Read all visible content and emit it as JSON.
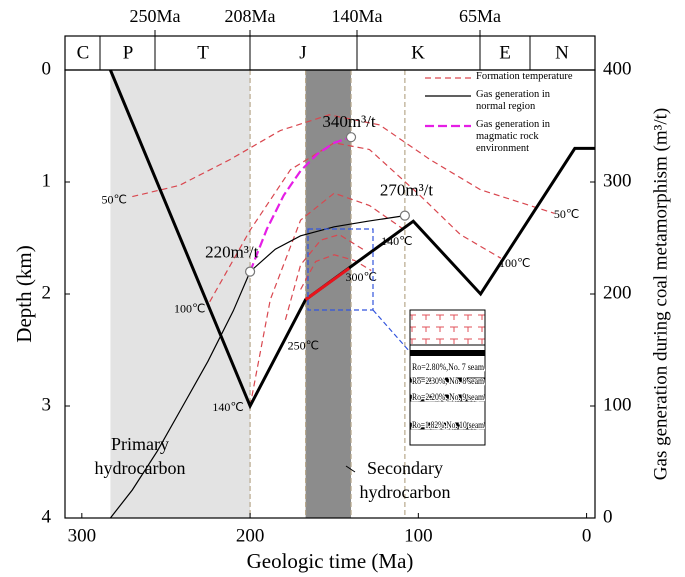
{
  "chart_data": {
    "type": "burial-history",
    "xlabel": "Geologic time (Ma)",
    "ylabel": "Depth (km)",
    "y2label": "Gas generation during coal metamorphism (m³/t)",
    "xlim": [
      310,
      -5
    ],
    "xticks": [
      300,
      200,
      100,
      0
    ],
    "ylim": [
      4,
      0
    ],
    "yticks": [
      0,
      1,
      2,
      3,
      4
    ],
    "y2lim": [
      0,
      400
    ],
    "y2ticks": [
      0,
      100,
      200,
      300,
      400
    ],
    "periods": [
      "C",
      "P",
      "T",
      "J",
      "K",
      "E",
      "N"
    ],
    "period_ages": [
      "250Ma",
      "208Ma",
      "140Ma",
      "65Ma"
    ],
    "shaded": [
      {
        "range": [
          283,
          200
        ],
        "color": "#e3e3e3"
      },
      {
        "range": [
          167,
          140
        ],
        "color": "#8c8c8c"
      }
    ],
    "vlines": [
      200,
      167,
      140,
      108
    ],
    "burial": {
      "color": "#000000",
      "x": [
        283,
        200,
        167,
        103,
        63,
        7,
        -5
      ],
      "values": [
        0,
        3,
        2.05,
        1.35,
        2.0,
        0.7,
        0.7
      ]
    },
    "burial_highlight": {
      "color": "#e8141c",
      "x": [
        167,
        141
      ],
      "values": [
        2.05,
        1.77
      ]
    },
    "series": [
      {
        "name": "Formation temperature",
        "color": "#d9474f",
        "lines": [
          {
            "label": "50℃",
            "x": [
              270,
              242,
              212,
              182,
              153,
              123,
              93,
              63,
              19
            ],
            "values": [
              1.13,
              1.03,
              0.8,
              0.54,
              0.4,
              0.49,
              0.8,
              1.07,
              1.28
            ]
          },
          {
            "label": "100℃",
            "x": [
              224,
              200,
              176,
              150,
              129,
              99,
              75,
              51
            ],
            "values": [
              2.07,
              1.43,
              0.89,
              0.65,
              0.71,
              1.12,
              1.47,
              1.68
            ]
          },
          {
            "label": "140℃",
            "x": [
              200,
              188,
              170,
              150,
              129,
              108
            ],
            "values": [
              3.0,
              2.05,
              1.34,
              1.1,
              1.21,
              1.43
            ]
          },
          {
            "label": "250℃",
            "x": [
              179,
              170,
              158,
              147,
              132
            ],
            "values": [
              2.23,
              1.74,
              1.52,
              1.47,
              1.61
            ]
          },
          {
            "label": "300℃",
            "x": [
              170,
              161,
              150,
              138,
              128
            ],
            "values": [
              1.96,
              1.71,
              1.65,
              1.7,
              1.79
            ]
          }
        ]
      },
      {
        "name": "Gas generation in normal region",
        "color": "#000000",
        "axis": "y2",
        "x": [
          283,
          270,
          255,
          240,
          225,
          210,
          200,
          185,
          170,
          150,
          130,
          108
        ],
        "values": [
          0,
          25,
          60,
          100,
          140,
          185,
          220,
          240,
          252,
          260,
          265,
          270
        ]
      },
      {
        "name": "Gas generation in magmatic rock environment",
        "color": "#e51ee5",
        "axis": "y2",
        "x": [
          200,
          190,
          180,
          170,
          160,
          150,
          140
        ],
        "values": [
          220,
          258,
          288,
          310,
          325,
          335,
          340
        ]
      }
    ],
    "gas_points": {
      "x": [
        140,
        108,
        200
      ],
      "values": [
        340,
        270,
        220
      ],
      "value_labels": [
        "340m³/t",
        "270m³/t",
        "220m³/t"
      ]
    },
    "annotations": [
      "Primary hydrocarbon",
      "Secondary hydrocarbon"
    ],
    "inset": {
      "seams": [
        "Ro=2.80%,No. 7 seam",
        "Ro=2.30%, No. 8 seam",
        "Ro=2.20%, No. 9 seam",
        "Ro=1.82%,No. 10 seam"
      ]
    }
  }
}
